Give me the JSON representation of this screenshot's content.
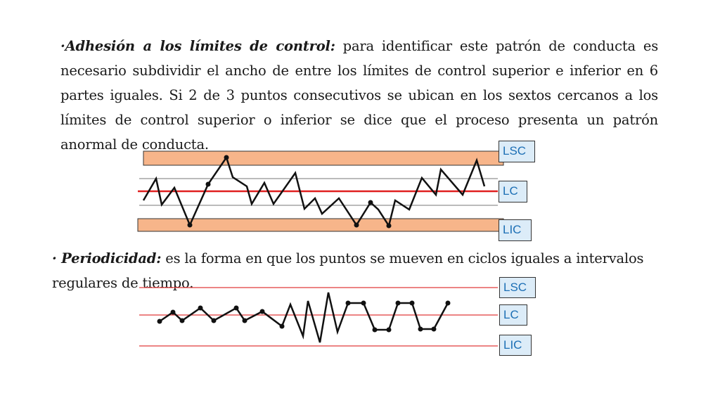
{
  "section1": {
    "title": "·Adhesión a los límites de control:",
    "body": " para identificar este patrón de conducta es necesario subdividir el ancho de entre los límites de control superior e inferior en 6 partes iguales. Si 2 de 3 puntos consecutivos se ubican en los sextos cercanos a los límites de control superior o inferior se dice que el proceso presenta un patrón anormal de conducta."
  },
  "section2": {
    "title": "· Periodicidad:",
    "body": " es la forma en que los puntos se mueven en ciclos iguales a intervalos regulares de tiempo."
  },
  "chart1": {
    "labels": {
      "upper": "LSC",
      "center": "LC",
      "lower": "LIC"
    }
  },
  "chart2": {
    "labels": {
      "upper": "LSC",
      "center": "LC",
      "lower": "LIC"
    }
  },
  "colors": {
    "band_fill": "#f7b58a",
    "center_line": "#e02020",
    "limit_line": "#e03a3a",
    "trace": "#111111",
    "label_bg": "#dcecf8",
    "label_text": "#1c6fb5"
  }
}
